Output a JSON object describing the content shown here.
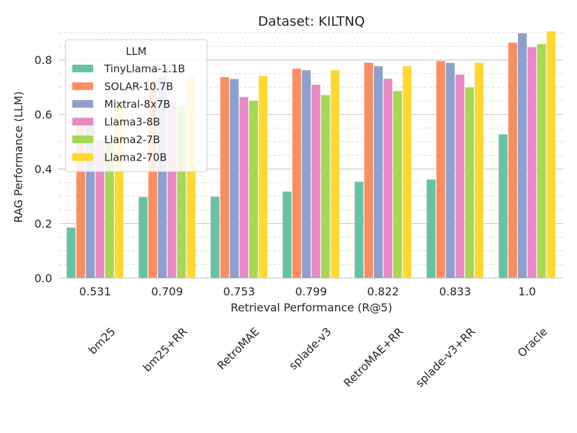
{
  "chart_data": {
    "type": "bar",
    "title": "Dataset: KILTNQ",
    "xlabel": "Retrieval Performance (R@5)",
    "ylabel": "RAG Performance (LLM)",
    "ylim": [
      0,
      0.9
    ],
    "yticks": [
      "0.0",
      "0.2",
      "0.4",
      "0.6",
      "0.8"
    ],
    "categories": [
      "0.531",
      "0.709",
      "0.753",
      "0.799",
      "0.822",
      "0.833",
      "1.0"
    ],
    "retrievers": [
      "bm25",
      "bm25+RR",
      "RetroMAE",
      "splade-v3",
      "RetroMAE+RR",
      "splade-v3+RR",
      "Oracle"
    ],
    "legend_title": "LLM",
    "series": [
      {
        "name": "TinyLlama-1.1B",
        "color": "#66c2a5",
        "values": [
          0.185,
          0.297,
          0.298,
          0.317,
          0.353,
          0.361,
          0.527
        ]
      },
      {
        "name": "SOLAR-10.7B",
        "color": "#fc8d62",
        "values": [
          0.573,
          0.723,
          0.737,
          0.768,
          0.79,
          0.796,
          0.863
        ]
      },
      {
        "name": "Mixtral-8x7B",
        "color": "#8da0cb",
        "values": [
          0.585,
          0.741,
          0.73,
          0.762,
          0.777,
          0.789,
          0.898
        ]
      },
      {
        "name": "Llama3-8B",
        "color": "#e78ac3",
        "values": [
          0.505,
          0.65,
          0.664,
          0.709,
          0.731,
          0.746,
          0.847
        ]
      },
      {
        "name": "Llama2-7B",
        "color": "#a6d854",
        "values": [
          0.513,
          0.631,
          0.65,
          0.671,
          0.686,
          0.699,
          0.858
        ]
      },
      {
        "name": "Llama2-70B",
        "color": "#ffd92f",
        "values": [
          0.65,
          0.737,
          0.741,
          0.763,
          0.777,
          0.79,
          0.905
        ]
      }
    ]
  }
}
